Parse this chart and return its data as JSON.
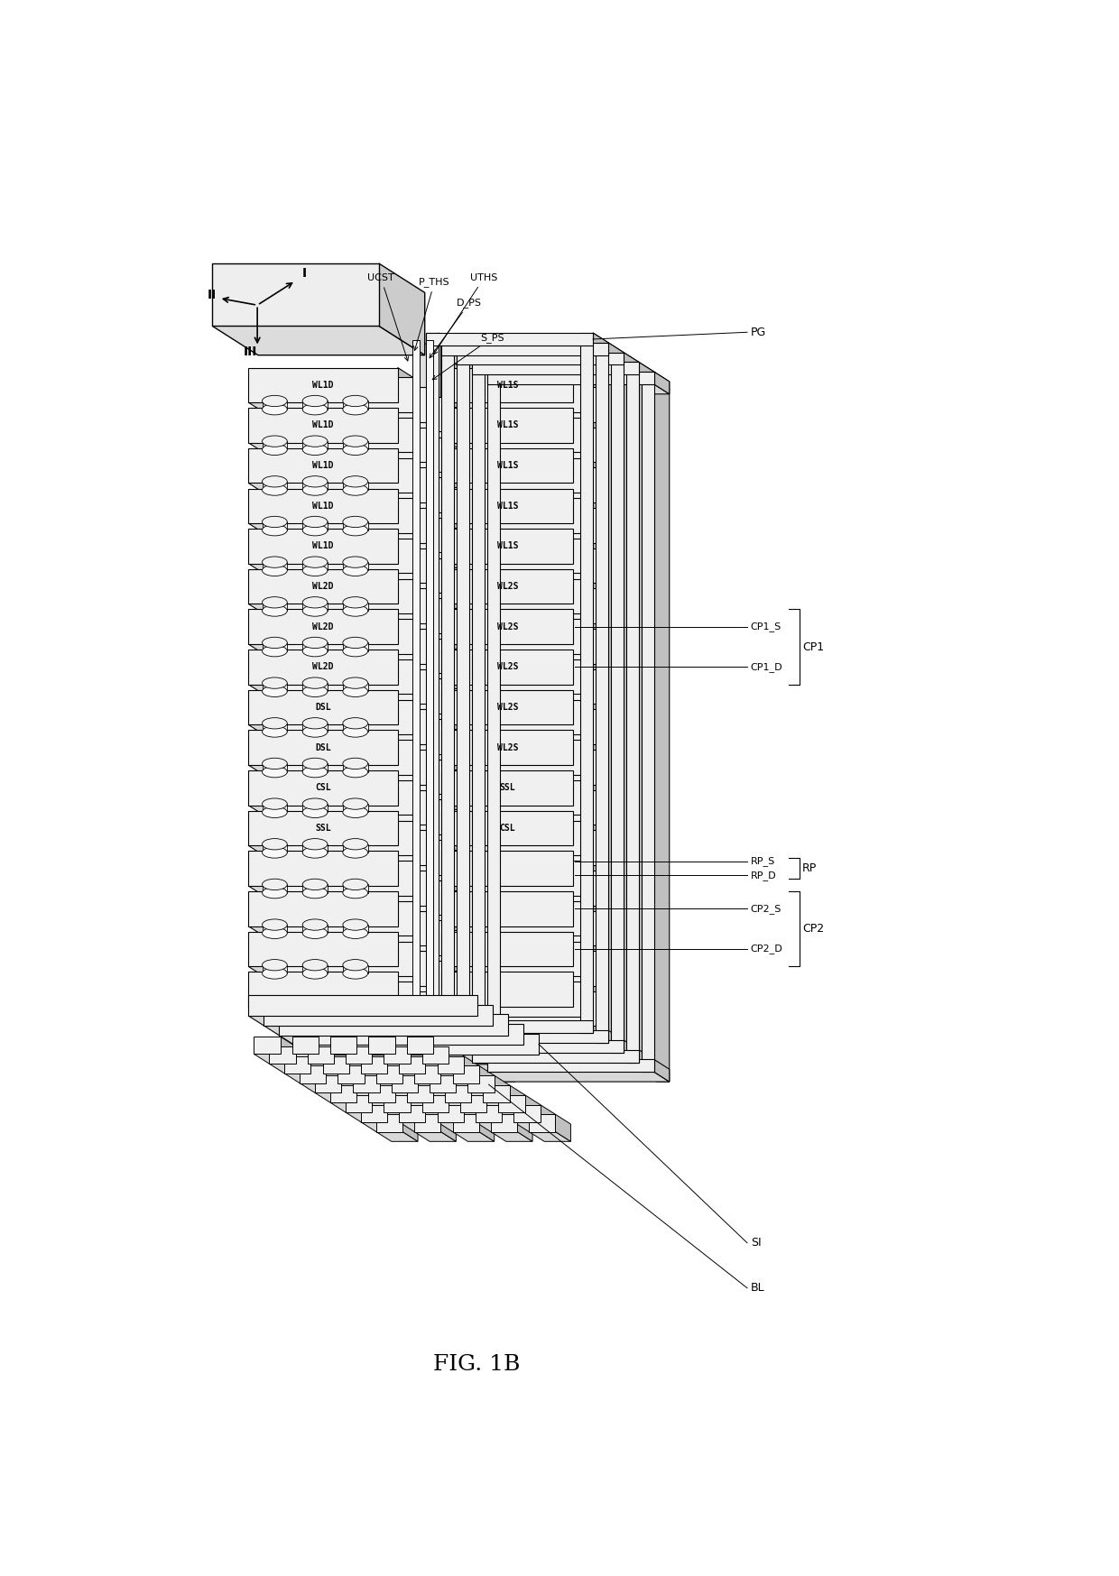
{
  "title": "FIG. 1B",
  "bg": "#ffffff",
  "lc": "#000000",
  "title_fontsize": 18,
  "ann_fontsize": 9,
  "fig_width": 12.4,
  "fig_height": 17.47,
  "n_layers": 16,
  "layer_labels_left": [
    "WL1D",
    "WL1D",
    "WL1D",
    "WL1D",
    "WL1D",
    "WL2D",
    "WL2D",
    "WL2D",
    "DSL",
    "DSL",
    "CSL",
    "SSL",
    "",
    "",
    "",
    ""
  ],
  "layer_labels_right": [
    "WL1S",
    "WL1S",
    "WL1S",
    "WL1S",
    "WL1S",
    "WL2S",
    "WL2S",
    "WL2S",
    "WL2S",
    "WL2S",
    "SSL",
    "CSL",
    "",
    "",
    "",
    ""
  ]
}
